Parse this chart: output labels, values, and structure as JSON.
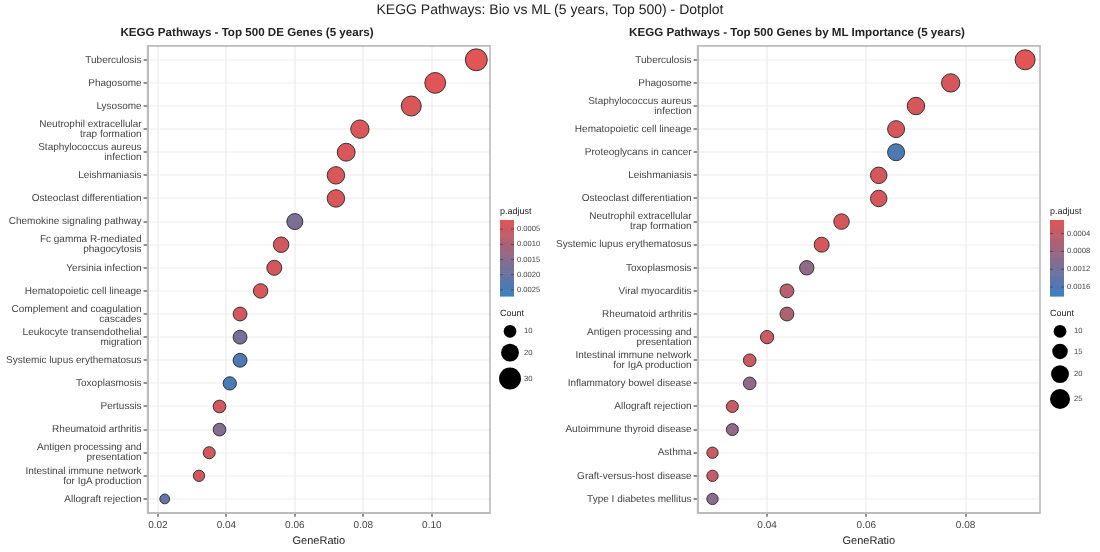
{
  "chart_data": [
    {
      "type": "bubble",
      "title": "KEGG Pathways - Top 500 DE Genes (5 years)",
      "annotations": [
        "KEGG Pathways: Bio vs ML (5 years, Top 500) - Dotplot"
      ],
      "xlabel": "GeneRatio",
      "orientation": "horizontal",
      "grid": true,
      "categories": [
        "Tuberculosis",
        "Phagosome",
        "Lysosome",
        "Neutrophil extracellular trap formation",
        "Staphylococcus aureus infection",
        "Leishmaniasis",
        "Osteoclast differentiation",
        "Chemokine signaling pathway",
        "Fc gamma R-mediated phagocytosis",
        "Yersinia infection",
        "Hematopoietic cell lineage",
        "Complement and coagulation cascades",
        "Leukocyte transendothelial migration",
        "Systemic lupus erythematosus",
        "Toxoplasmosis",
        "Pertussis",
        "Rheumatoid arthritis",
        "Antigen processing and presentation",
        "Intestinal immune network for IgA production",
        "Allograft rejection"
      ],
      "values": [
        0.113,
        0.101,
        0.094,
        0.079,
        0.075,
        0.072,
        0.072,
        0.06,
        0.056,
        0.054,
        0.05,
        0.044,
        0.044,
        0.044,
        0.041,
        0.038,
        0.038,
        0.035,
        0.032,
        0.022
      ],
      "sizes": [
        30,
        27,
        25,
        21,
        20,
        19,
        19,
        16,
        15,
        14,
        13,
        12,
        12,
        12,
        11,
        10,
        10,
        9,
        8,
        6
      ],
      "cvalues": [
        0.0002,
        0.0002,
        0.0003,
        0.0003,
        0.0003,
        0.0003,
        0.0003,
        0.0017,
        0.0004,
        0.0004,
        0.0003,
        0.0004,
        0.0018,
        0.0024,
        0.0025,
        0.0004,
        0.0016,
        0.0004,
        0.0004,
        0.0021
      ],
      "xlim": [
        0.017,
        0.117
      ],
      "xticks": [
        0.02,
        0.04,
        0.06,
        0.08,
        {
          "value": 0.1,
          "label": "0.10"
        }
      ],
      "clabel": "p.adjust",
      "clim": [
        0.0002,
        0.0027
      ],
      "cticks": [
        0.0005,
        {
          "value": 0.001,
          "label": "0.0010"
        },
        0.0015,
        {
          "value": 0.002,
          "label": "0.0020"
        },
        0.0025
      ],
      "legend_title": "Count",
      "size_legend": [
        10,
        20,
        30
      ]
    },
    {
      "type": "bubble",
      "title": "KEGG Pathways - Top 500 Genes by ML Importance (5 years)",
      "xlabel": "GeneRatio",
      "orientation": "horizontal",
      "grid": true,
      "categories": [
        "Tuberculosis",
        "Phagosome",
        "Staphylococcus aureus infection",
        "Hematopoietic cell lineage",
        "Proteoglycans in cancer",
        "Leishmaniasis",
        "Osteoclast differentiation",
        "Neutrophil extracellular trap formation",
        "Systemic lupus erythematosus",
        "Toxoplasmosis",
        "Viral myocarditis",
        "Rheumatoid arthritis",
        "Antigen processing and presentation",
        "Intestinal immune network for IgA production",
        "Inflammatory bowel disease",
        "Allograft rejection",
        "Autoimmune thyroid disease",
        "Asthma",
        "Graft-versus-host disease",
        "Type I diabetes mellitus"
      ],
      "values": [
        0.092,
        0.077,
        0.07,
        0.066,
        0.066,
        0.0625,
        0.0625,
        0.055,
        0.051,
        0.048,
        0.044,
        0.044,
        0.04,
        0.0365,
        0.0365,
        0.033,
        0.033,
        0.029,
        0.029,
        0.029
      ],
      "sizes": [
        25,
        21,
        19,
        18,
        18,
        17,
        17,
        15,
        14,
        13,
        12,
        12,
        11,
        10,
        10,
        9,
        9,
        8,
        8,
        8
      ],
      "cvalues": [
        0.0001,
        0.0002,
        0.0002,
        0.0002,
        0.0016,
        0.0002,
        0.0002,
        0.0002,
        0.0002,
        0.0009,
        0.0005,
        0.0006,
        0.0003,
        0.0003,
        0.0009,
        0.0003,
        0.0009,
        0.0003,
        0.0004,
        0.001
      ],
      "xlim": [
        0.026,
        0.095
      ],
      "xticks": [
        0.04,
        0.06,
        0.08
      ],
      "clabel": "p.adjust",
      "clim": [
        0.0001,
        0.0018
      ],
      "cticks": [
        0.0004,
        0.0008,
        0.0012,
        0.0016
      ],
      "legend_title": "Count",
      "size_legend": [
        10,
        15,
        20,
        25
      ]
    }
  ]
}
